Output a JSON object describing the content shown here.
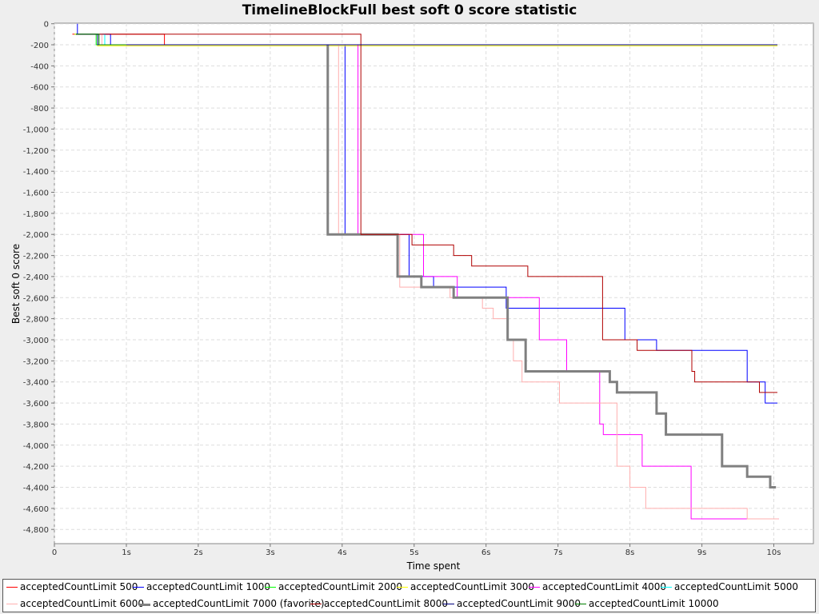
{
  "chart_data": {
    "type": "line",
    "title": "TimelineBlockFull best soft 0 score statistic",
    "xlabel": "Time spent",
    "ylabel": "Best soft 0 score",
    "xlim": [
      0,
      10.55
    ],
    "ylim": [
      -4935,
      5
    ],
    "x_ticks": [
      {
        "v": 0,
        "label": "0"
      },
      {
        "v": 1,
        "label": "1s"
      },
      {
        "v": 2,
        "label": "2s"
      },
      {
        "v": 3,
        "label": "3s"
      },
      {
        "v": 4,
        "label": "4s"
      },
      {
        "v": 5,
        "label": "5s"
      },
      {
        "v": 6,
        "label": "6s"
      },
      {
        "v": 7,
        "label": "7s"
      },
      {
        "v": 8,
        "label": "8s"
      },
      {
        "v": 9,
        "label": "9s"
      },
      {
        "v": 10,
        "label": "10s"
      }
    ],
    "y_ticks": [
      {
        "v": 0,
        "label": "0"
      },
      {
        "v": -200,
        "label": "-200"
      },
      {
        "v": -400,
        "label": "-400"
      },
      {
        "v": -600,
        "label": "-600"
      },
      {
        "v": -800,
        "label": "-800"
      },
      {
        "v": -1000,
        "label": "-1,000"
      },
      {
        "v": -1200,
        "label": "-1,200"
      },
      {
        "v": -1400,
        "label": "-1,400"
      },
      {
        "v": -1600,
        "label": "-1,600"
      },
      {
        "v": -1800,
        "label": "-1,800"
      },
      {
        "v": -2000,
        "label": "-2,000"
      },
      {
        "v": -2200,
        "label": "-2,200"
      },
      {
        "v": -2400,
        "label": "-2,400"
      },
      {
        "v": -2600,
        "label": "-2,600"
      },
      {
        "v": -2800,
        "label": "-2,800"
      },
      {
        "v": -3000,
        "label": "-3,000"
      },
      {
        "v": -3200,
        "label": "-3,200"
      },
      {
        "v": -3400,
        "label": "-3,400"
      },
      {
        "v": -3600,
        "label": "-3,600"
      },
      {
        "v": -3800,
        "label": "-3,800"
      },
      {
        "v": -4000,
        "label": "-4,000"
      },
      {
        "v": -4200,
        "label": "-4,200"
      },
      {
        "v": -4400,
        "label": "-4,400"
      },
      {
        "v": -4600,
        "label": "-4,600"
      },
      {
        "v": -4800,
        "label": "-4,800"
      }
    ],
    "grid": true,
    "legend_position": "bottom",
    "series": [
      {
        "name": "acceptedCountLimit 500",
        "color": "#ff0000",
        "width": 1,
        "points": [
          [
            0.25,
            -100
          ],
          [
            1.53,
            -100
          ],
          [
            1.53,
            -200
          ],
          [
            10.05,
            -200
          ]
        ]
      },
      {
        "name": "acceptedCountLimit 1000",
        "color": "#0000ff",
        "width": 1,
        "points": [
          [
            0.32,
            0
          ],
          [
            0.32,
            -100
          ],
          [
            0.78,
            -100
          ],
          [
            0.78,
            -200
          ],
          [
            4.04,
            -200
          ],
          [
            4.04,
            -2000
          ],
          [
            4.93,
            -2000
          ],
          [
            4.93,
            -2400
          ],
          [
            5.27,
            -2400
          ],
          [
            5.27,
            -2500
          ],
          [
            6.28,
            -2500
          ],
          [
            6.28,
            -2700
          ],
          [
            7.93,
            -2700
          ],
          [
            7.93,
            -3000
          ],
          [
            8.37,
            -3000
          ],
          [
            8.37,
            -3100
          ],
          [
            9.63,
            -3100
          ],
          [
            9.63,
            -3400
          ],
          [
            9.88,
            -3400
          ],
          [
            9.88,
            -3600
          ],
          [
            10.05,
            -3600
          ]
        ]
      },
      {
        "name": "acceptedCountLimit 2000",
        "color": "#00ff00",
        "width": 1,
        "points": [
          [
            0.28,
            -100
          ],
          [
            0.58,
            -100
          ],
          [
            0.58,
            -200
          ],
          [
            10.05,
            -200
          ]
        ]
      },
      {
        "name": "acceptedCountLimit 3000",
        "color": "#ffff00",
        "width": 1,
        "points": [
          [
            0.28,
            -100
          ],
          [
            0.6,
            -100
          ],
          [
            0.6,
            -210
          ],
          [
            10.05,
            -210
          ]
        ]
      },
      {
        "name": "acceptedCountLimit 4000",
        "color": "#ff00ff",
        "width": 1,
        "points": [
          [
            0.3,
            -100
          ],
          [
            0.7,
            -100
          ],
          [
            0.7,
            -200
          ],
          [
            4.22,
            -200
          ],
          [
            4.22,
            -2000
          ],
          [
            5.13,
            -2000
          ],
          [
            5.13,
            -2400
          ],
          [
            5.6,
            -2400
          ],
          [
            5.6,
            -2600
          ],
          [
            6.74,
            -2600
          ],
          [
            6.74,
            -3000
          ],
          [
            7.12,
            -3000
          ],
          [
            7.12,
            -3300
          ],
          [
            7.58,
            -3300
          ],
          [
            7.58,
            -3800
          ],
          [
            7.63,
            -3800
          ],
          [
            7.63,
            -3900
          ],
          [
            8.17,
            -3900
          ],
          [
            8.17,
            -4200
          ],
          [
            8.85,
            -4200
          ],
          [
            8.85,
            -4700
          ],
          [
            10.07,
            -4700
          ]
        ]
      },
      {
        "name": "acceptedCountLimit 5000",
        "color": "#00ffff",
        "width": 1,
        "points": [
          [
            0.3,
            -100
          ],
          [
            0.7,
            -100
          ],
          [
            0.7,
            -200
          ],
          [
            1.0,
            -200
          ]
        ]
      },
      {
        "name": "acceptedCountLimit 6000",
        "color": "#ffafaf",
        "width": 1,
        "points": [
          [
            0.3,
            -100
          ],
          [
            0.66,
            -100
          ],
          [
            0.66,
            -200
          ],
          [
            3.95,
            -200
          ],
          [
            3.95,
            -2000
          ],
          [
            4.8,
            -2000
          ],
          [
            4.8,
            -2500
          ],
          [
            5.5,
            -2500
          ],
          [
            5.5,
            -2600
          ],
          [
            5.95,
            -2600
          ],
          [
            5.95,
            -2700
          ],
          [
            6.1,
            -2700
          ],
          [
            6.1,
            -2800
          ],
          [
            6.3,
            -2800
          ],
          [
            6.3,
            -3000
          ],
          [
            6.38,
            -3000
          ],
          [
            6.38,
            -3200
          ],
          [
            6.5,
            -3200
          ],
          [
            6.5,
            -3400
          ],
          [
            7.02,
            -3400
          ],
          [
            7.02,
            -3600
          ],
          [
            7.82,
            -3600
          ],
          [
            7.82,
            -4200
          ],
          [
            8.0,
            -4200
          ],
          [
            8.0,
            -4400
          ],
          [
            8.22,
            -4400
          ],
          [
            8.22,
            -4600
          ],
          [
            9.63,
            -4600
          ],
          [
            9.63,
            -4700
          ],
          [
            10.07,
            -4700
          ]
        ]
      },
      {
        "name": "acceptedCountLimit 7000 (favorite)",
        "color": "#808080",
        "width": 3,
        "points": [
          [
            3.8,
            -200
          ],
          [
            3.8,
            -2000
          ],
          [
            4.77,
            -2000
          ],
          [
            4.77,
            -2400
          ],
          [
            5.1,
            -2400
          ],
          [
            5.1,
            -2500
          ],
          [
            5.55,
            -2500
          ],
          [
            5.55,
            -2600
          ],
          [
            6.3,
            -2600
          ],
          [
            6.3,
            -3000
          ],
          [
            6.55,
            -3000
          ],
          [
            6.55,
            -3300
          ],
          [
            7.72,
            -3300
          ],
          [
            7.72,
            -3400
          ],
          [
            7.82,
            -3400
          ],
          [
            7.82,
            -3500
          ],
          [
            8.37,
            -3500
          ],
          [
            8.37,
            -3700
          ],
          [
            8.5,
            -3700
          ],
          [
            8.5,
            -3900
          ],
          [
            9.28,
            -3900
          ],
          [
            9.28,
            -4200
          ],
          [
            9.63,
            -4200
          ],
          [
            9.63,
            -4300
          ],
          [
            9.95,
            -4300
          ],
          [
            9.95,
            -4400
          ],
          [
            10.03,
            -4400
          ]
        ]
      },
      {
        "name": "acceptedCountLimit 8000",
        "color": "#b00000",
        "width": 1,
        "points": [
          [
            0.3,
            -100
          ],
          [
            0.58,
            -100
          ],
          [
            0.58,
            -100
          ],
          [
            4.26,
            -100
          ],
          [
            4.26,
            -2000
          ],
          [
            4.97,
            -2000
          ],
          [
            4.97,
            -2100
          ],
          [
            5.55,
            -2100
          ],
          [
            5.55,
            -2200
          ],
          [
            5.8,
            -2200
          ],
          [
            5.8,
            -2300
          ],
          [
            6.58,
            -2300
          ],
          [
            6.58,
            -2400
          ],
          [
            7.62,
            -2400
          ],
          [
            7.62,
            -3000
          ],
          [
            8.1,
            -3000
          ],
          [
            8.1,
            -3100
          ],
          [
            8.86,
            -3100
          ],
          [
            8.86,
            -3300
          ],
          [
            8.9,
            -3300
          ],
          [
            8.9,
            -3400
          ],
          [
            9.8,
            -3400
          ],
          [
            9.8,
            -3500
          ],
          [
            10.05,
            -3500
          ]
        ]
      },
      {
        "name": "acceptedCountLimit 9000",
        "color": "#000080",
        "width": 1,
        "points": [
          [
            0.3,
            -100
          ],
          [
            0.6,
            -100
          ],
          [
            0.6,
            -200
          ],
          [
            10.05,
            -200
          ]
        ]
      },
      {
        "name": "acceptedCountLimit 10000",
        "color": "#008000",
        "width": 1,
        "points": [
          [
            0.3,
            -100
          ],
          [
            0.62,
            -100
          ],
          [
            0.62,
            -200
          ],
          [
            1.0,
            -200
          ]
        ]
      }
    ]
  }
}
